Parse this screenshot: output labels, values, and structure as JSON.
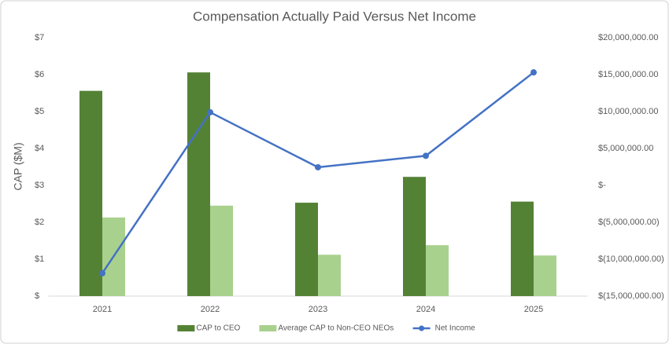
{
  "chart_data": {
    "type": "bar_line",
    "title": "Compensation Actually Paid Versus Net Income",
    "y_label": "CAP ($M)",
    "categories": [
      "2021",
      "2022",
      "2023",
      "2024",
      "2025"
    ],
    "series": [
      {
        "name": "CAP to CEO",
        "color": "#548235",
        "type": "bar",
        "values": [
          5.56,
          6.06,
          2.53,
          3.23,
          2.56
        ]
      },
      {
        "name": "Average CAP to Non-CEO NEOs",
        "color": "#a9d18e",
        "type": "bar",
        "values": [
          2.13,
          2.45,
          1.12,
          1.38,
          1.1
        ]
      },
      {
        "name": "Net Income",
        "color": "#4472c4",
        "type": "line",
        "axis": "y2",
        "values": [
          -11900000,
          9900000,
          2450000,
          4000000,
          15300000
        ]
      }
    ],
    "ylim": [
      0,
      7
    ],
    "yticks": [
      {
        "value": 0,
        "label": "$"
      },
      {
        "value": 1,
        "label": "$1"
      },
      {
        "value": 2,
        "label": "$2"
      },
      {
        "value": 3,
        "label": "$3"
      },
      {
        "value": 4,
        "label": "$4"
      },
      {
        "value": 5,
        "label": "$5"
      },
      {
        "value": 6,
        "label": "$6"
      },
      {
        "value": 7,
        "label": "$7"
      }
    ],
    "y2lim": [
      -15000000,
      20000000
    ],
    "y2ticks": [
      {
        "value": -15000000,
        "label": "$(15,000,000.00)"
      },
      {
        "value": -10000000,
        "label": "$(10,000,000.00)"
      },
      {
        "value": -5000000,
        "label": "$(5,000,000.00)"
      },
      {
        "value": 0,
        "label": "$-"
      },
      {
        "value": 5000000,
        "label": "$5,000,000.00"
      },
      {
        "value": 10000000,
        "label": "$10,000,000.00"
      },
      {
        "value": 15000000,
        "label": "$15,000,000.00"
      },
      {
        "value": 20000000,
        "label": "$20,000,000.00"
      }
    ],
    "legend": "bottom",
    "grid": false
  }
}
